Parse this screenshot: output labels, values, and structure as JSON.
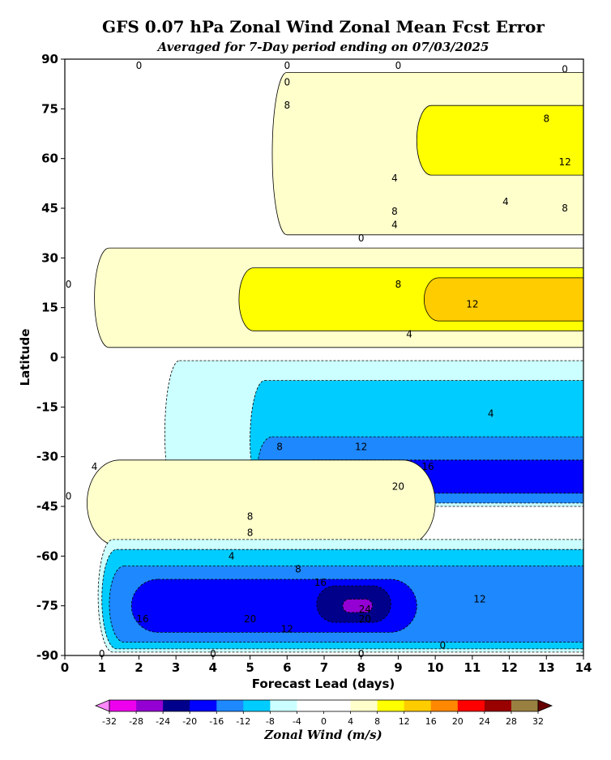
{
  "chart_data": {
    "type": "contour",
    "title": "GFS 0.07 hPa Zonal Wind Zonal Mean Fcst Error",
    "subtitle": "Averaged for 7-Day period ending on 07/03/2025",
    "xlabel": "Forecast Lead (days)",
    "ylabel": "Latitude",
    "xlim": [
      0,
      14
    ],
    "ylim": [
      -90,
      90
    ],
    "x_ticks": [
      "0",
      "1",
      "2",
      "3",
      "4",
      "5",
      "6",
      "7",
      "8",
      "9",
      "10",
      "11",
      "12",
      "13",
      "14"
    ],
    "y_ticks": [
      "90",
      "75",
      "60",
      "45",
      "30",
      "15",
      "0",
      "-15",
      "-30",
      "-45",
      "-60",
      "-75",
      "-90"
    ],
    "colorbar": {
      "label": "Zonal Wind (m/s)",
      "ticks": [
        "-32",
        "-28",
        "-24",
        "-20",
        "-16",
        "-12",
        "-8",
        "-4",
        "0",
        "4",
        "8",
        "12",
        "16",
        "20",
        "24",
        "28",
        "32"
      ],
      "colors": [
        "#ee00ee",
        "#9400d3",
        "#00008b",
        "#0000ff",
        "#1e88ff",
        "#00ccff",
        "#ccffff",
        "#ffffff",
        "#ffffff",
        "#ffffcc",
        "#ffff00",
        "#ffcc00",
        "#ff8800",
        "#ff0000",
        "#990000",
        "#9a8040"
      ],
      "extend_low_color": "#ff88ff",
      "extend_high_color": "#660000"
    },
    "regions": [
      {
        "level": 4,
        "color": "#ffffcc",
        "x": [
          5.6,
          14
        ],
        "y": [
          37,
          86
        ],
        "desc": "NH high-latitude positive error band"
      },
      {
        "level": 8,
        "color": "#ffff00",
        "x": [
          9.5,
          14
        ],
        "y": [
          55,
          76
        ]
      },
      {
        "level": 4,
        "color": "#ffffcc",
        "x": [
          0.8,
          14
        ],
        "y": [
          3,
          33
        ]
      },
      {
        "level": 8,
        "color": "#ffff00",
        "x": [
          4.7,
          14
        ],
        "y": [
          8,
          27
        ]
      },
      {
        "level": 12,
        "color": "#ffcc00",
        "x": [
          9.7,
          14
        ],
        "y": [
          11,
          24
        ]
      },
      {
        "level": -4,
        "color": "#ccffff",
        "x": [
          2.7,
          14
        ],
        "y": [
          -45,
          -1
        ]
      },
      {
        "level": -8,
        "color": "#00ccff",
        "x": [
          5.0,
          14
        ],
        "y": [
          -43,
          -7
        ]
      },
      {
        "level": -12,
        "color": "#1e88ff",
        "x": [
          5.2,
          14
        ],
        "y": [
          -44,
          -24
        ]
      },
      {
        "level": -16,
        "color": "#0000ff",
        "x": [
          6.3,
          14
        ],
        "y": [
          -41,
          -31
        ]
      },
      {
        "level": -20,
        "color": "#00008b",
        "x": [
          8.0,
          9.5
        ],
        "y": [
          -38,
          -33
        ]
      },
      {
        "level": 4,
        "color": "#ffffcc",
        "x": [
          0.6,
          10.0
        ],
        "y": [
          -57,
          -31
        ]
      },
      {
        "level": -4,
        "color": "#ccffff",
        "x": [
          0.9,
          14
        ],
        "y": [
          -89,
          -55
        ]
      },
      {
        "level": -8,
        "color": "#00ccff",
        "x": [
          1.0,
          14
        ],
        "y": [
          -88,
          -58
        ]
      },
      {
        "level": -12,
        "color": "#1e88ff",
        "x": [
          1.2,
          14
        ],
        "y": [
          -86,
          -63
        ]
      },
      {
        "level": -16,
        "color": "#0000ff",
        "x": [
          1.8,
          9.5
        ],
        "y": [
          -83,
          -67
        ]
      },
      {
        "level": -20,
        "color": "#00008b",
        "x": [
          6.8,
          8.8
        ],
        "y": [
          -80,
          -69
        ]
      },
      {
        "level": -24,
        "color": "#9400d3",
        "x": [
          7.5,
          8.3
        ],
        "y": [
          -77,
          -73
        ]
      }
    ],
    "contour_labels": [
      {
        "text": "0",
        "x": 2.0,
        "y": 88
      },
      {
        "text": "0",
        "x": 6.0,
        "y": 90
      },
      {
        "text": "0",
        "x": 9.0,
        "y": 90
      },
      {
        "text": "0",
        "x": 6.0,
        "y": 83
      },
      {
        "text": "0",
        "x": 13.5,
        "y": 87
      },
      {
        "text": "8",
        "x": 6.0,
        "y": 76
      },
      {
        "text": "8",
        "x": 13.0,
        "y": 72
      },
      {
        "text": "12",
        "x": 13.5,
        "y": 59
      },
      {
        "text": "4",
        "x": 8.9,
        "y": 54
      },
      {
        "text": "4",
        "x": 11.9,
        "y": 47
      },
      {
        "text": "8",
        "x": 8.9,
        "y": 44
      },
      {
        "text": "8",
        "x": 13.5,
        "y": 45
      },
      {
        "text": "4",
        "x": 8.9,
        "y": 40
      },
      {
        "text": "0",
        "x": 8.0,
        "y": 36
      },
      {
        "text": "8",
        "x": 9.0,
        "y": 22
      },
      {
        "text": "12",
        "x": 11.0,
        "y": 16
      },
      {
        "text": "4",
        "x": 9.3,
        "y": 7
      },
      {
        "text": "4",
        "x": 11.5,
        "y": -17
      },
      {
        "text": "8",
        "x": 5.8,
        "y": -27
      },
      {
        "text": "12",
        "x": 8.0,
        "y": -27
      },
      {
        "text": "16",
        "x": 9.8,
        "y": -33
      },
      {
        "text": "20",
        "x": 9.0,
        "y": -39
      },
      {
        "text": "4",
        "x": 0.8,
        "y": -33
      },
      {
        "text": "8",
        "x": 5.0,
        "y": -48
      },
      {
        "text": "8",
        "x": 5.0,
        "y": -53
      },
      {
        "text": "4",
        "x": 4.5,
        "y": -60
      },
      {
        "text": "8",
        "x": 6.3,
        "y": -64
      },
      {
        "text": "16",
        "x": 6.9,
        "y": -68
      },
      {
        "text": "12",
        "x": 11.2,
        "y": -73
      },
      {
        "text": "24",
        "x": 8.1,
        "y": -76
      },
      {
        "text": "20",
        "x": 8.1,
        "y": -79
      },
      {
        "text": "20",
        "x": 5.0,
        "y": -79
      },
      {
        "text": "16",
        "x": 2.1,
        "y": -79
      },
      {
        "text": "12",
        "x": 6.0,
        "y": -82
      },
      {
        "text": "0",
        "x": 1.0,
        "y": -90
      },
      {
        "text": "0",
        "x": 4.0,
        "y": -90
      },
      {
        "text": "0",
        "x": 8.0,
        "y": -90
      },
      {
        "text": "0",
        "x": 10.2,
        "y": -87
      },
      {
        "text": "0",
        "x": 0.1,
        "y": 22
      },
      {
        "text": "0",
        "x": 0.1,
        "y": -42
      }
    ]
  }
}
